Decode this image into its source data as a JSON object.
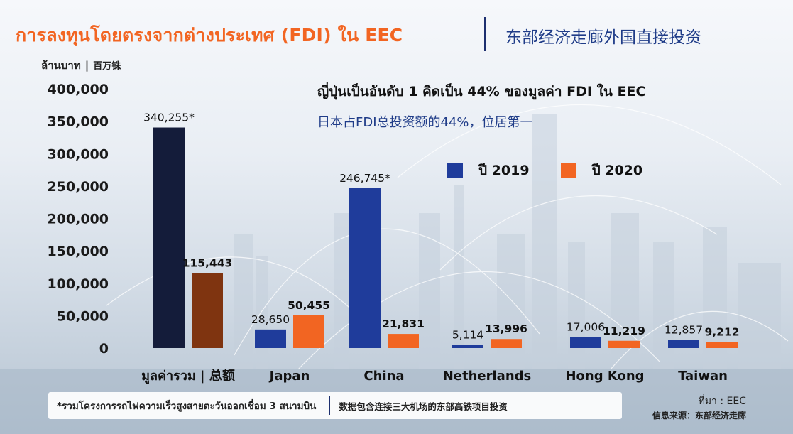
{
  "header": {
    "title_th": "การลงทุนโดยตรงจากต่างประเทศ (FDI) ใน EEC",
    "title_cn": "东部经济走廊外国直接投资"
  },
  "unit": {
    "th": "ล้านบาท",
    "sep": "|",
    "cn": "百万铢"
  },
  "headline": {
    "th": "ญี่ปุ่นเป็นอันดับ 1 คิดเป็น 44% ของมูลค่า FDI ใน EEC",
    "cn": "日本占FDI总投资额的44%，位居第一"
  },
  "legend": [
    {
      "label": "ปี 2019",
      "color": "#1f3c9b"
    },
    {
      "label": "ปี 2020",
      "color": "#f26522"
    }
  ],
  "footnote": {
    "th": "*รวมโครงการรถไฟความเร็วสูงสายตะวันออกเชื่อม 3 สนามบิน",
    "cn": "数据包含连接三大机场的东部高铁项目投资"
  },
  "source": {
    "th": "ที่มา : EEC",
    "cn": "信息来源：东部经济走廊"
  },
  "colors": {
    "total_2019": "#141c3a",
    "total_2020": "#7f3410",
    "y2019": "#1f3c9b",
    "y2020": "#f26522"
  },
  "chart_data": {
    "type": "bar",
    "title": "การลงทุนโดยตรงจากต่างประเทศ (FDI) ใน EEC",
    "ylabel": "ล้านบาท | 百万铢",
    "ylim": [
      0,
      400000
    ],
    "yticks": [
      "0",
      "50,000",
      "100,000",
      "150,000",
      "200,000",
      "250,000",
      "300,000",
      "350,000",
      "400,000"
    ],
    "ytick_values": [
      0,
      50000,
      100000,
      150000,
      200000,
      250000,
      300000,
      350000,
      400000
    ],
    "categories": [
      "มูลค่ารวม | 总额",
      "Japan",
      "China",
      "Netherlands",
      "Hong Kong",
      "Taiwan"
    ],
    "series": [
      {
        "name": "ปี 2019",
        "values": [
          340255,
          28650,
          246745,
          5114,
          17006,
          12857
        ],
        "labels": [
          "340,255*",
          "28,650",
          "246,745*",
          "5,114",
          "17,006",
          "12,857"
        ]
      },
      {
        "name": "ปี 2020",
        "values": [
          115443,
          50455,
          21831,
          13996,
          11219,
          9212
        ],
        "labels": [
          "115,443",
          "50,455",
          "21,831",
          "13,996",
          "11,219",
          "9,212"
        ]
      }
    ],
    "grid": false,
    "legend_position": "top-right"
  }
}
